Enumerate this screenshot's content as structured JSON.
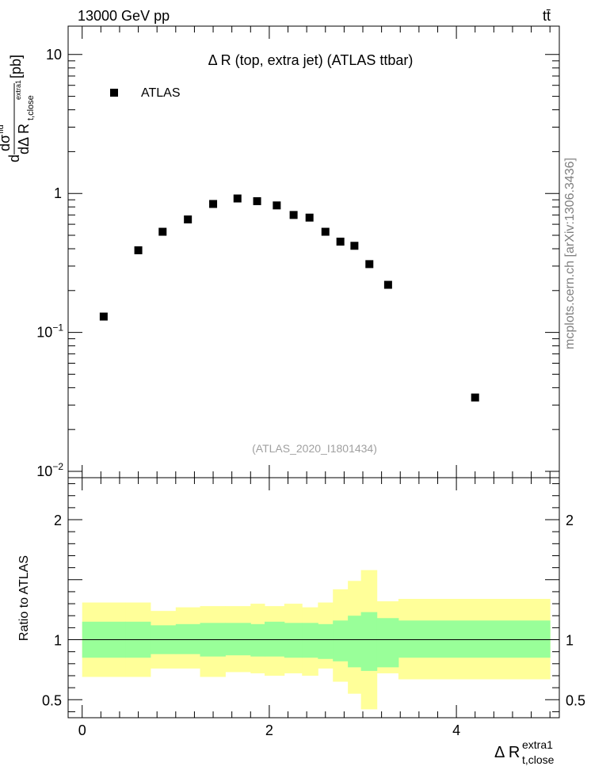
{
  "header": {
    "energy_label": "13000 GeV pp",
    "process_label": "tt̄",
    "watermark": "mcplots.cern.ch [arXiv:1306.3436]"
  },
  "chart_data": [
    {
      "type": "scatter",
      "panel": "main",
      "title": "Δ R (top, extra jet) (ATLAS ttbar)",
      "analysis_id": "(ATLAS_2020_I1801434)",
      "ylabel_parts": {
        "d": "d",
        "numer": "dσ",
        "numer_sup": "fid",
        "denom_prefix": "dΔ R",
        "denom_sub": "t,close",
        "denom_sup": "extra1",
        "unit": "[pb]"
      },
      "yscale": "log",
      "ylim": [
        0.009,
        16
      ],
      "yticks": [
        {
          "value": 0.01,
          "label_base": "10",
          "label_exp": "−2"
        },
        {
          "value": 0.1,
          "label_base": "10",
          "label_exp": "−1"
        },
        {
          "value": 1,
          "label": "1"
        },
        {
          "value": 10,
          "label": "10"
        }
      ],
      "xlim": [
        -0.15,
        5.1
      ],
      "legend": {
        "entries": [
          {
            "name": "ATLAS",
            "marker": "square"
          }
        ],
        "position": "top-left"
      },
      "series": [
        {
          "name": "ATLAS",
          "x": [
            0.23,
            0.6,
            0.86,
            1.13,
            1.4,
            1.66,
            1.87,
            2.08,
            2.26,
            2.43,
            2.6,
            2.76,
            2.91,
            3.07,
            3.27,
            4.2
          ],
          "y": [
            0.13,
            0.39,
            0.53,
            0.65,
            0.84,
            0.92,
            0.88,
            0.82,
            0.7,
            0.67,
            0.53,
            0.45,
            0.42,
            0.31,
            0.22,
            0.034
          ]
        }
      ]
    },
    {
      "type": "area",
      "panel": "ratio",
      "ylabel": "Ratio to ATLAS",
      "xlabel_parts": {
        "base": "Δ R",
        "sub": "t,close",
        "sup": "extra1"
      },
      "ylim": [
        0.35,
        2.35
      ],
      "xlim": [
        -0.15,
        5.1
      ],
      "xticks": [
        {
          "value": 0,
          "label": "0"
        },
        {
          "value": 2,
          "label": "2"
        },
        {
          "value": 4,
          "label": "4"
        }
      ],
      "yticks": [
        {
          "value": 0.5,
          "label": "0.5"
        },
        {
          "value": 1,
          "label": "1"
        },
        {
          "value": 2,
          "label": "2"
        }
      ],
      "reference_line": 1,
      "bands": {
        "edges": [
          0.0,
          0.46,
          0.73,
          1.0,
          1.26,
          1.53,
          1.8,
          1.95,
          2.16,
          2.35,
          2.52,
          2.68,
          2.84,
          2.98,
          3.15,
          3.38,
          5.0
        ],
        "inner_low": [
          0.85,
          0.85,
          0.88,
          0.88,
          0.86,
          0.87,
          0.86,
          0.86,
          0.85,
          0.85,
          0.84,
          0.82,
          0.77,
          0.74,
          0.77,
          0.85
        ],
        "inner_high": [
          1.15,
          1.15,
          1.12,
          1.13,
          1.14,
          1.14,
          1.13,
          1.15,
          1.14,
          1.14,
          1.13,
          1.16,
          1.2,
          1.23,
          1.18,
          1.16
        ],
        "outer_low": [
          0.69,
          0.69,
          0.76,
          0.76,
          0.69,
          0.73,
          0.72,
          0.7,
          0.72,
          0.7,
          0.76,
          0.65,
          0.55,
          0.42,
          0.72,
          0.67
        ],
        "outer_high": [
          1.31,
          1.31,
          1.24,
          1.27,
          1.28,
          1.28,
          1.3,
          1.28,
          1.3,
          1.27,
          1.31,
          1.42,
          1.49,
          1.58,
          1.32,
          1.34
        ],
        "inner_color": "#99ff99",
        "outer_color": "#ffff99"
      }
    }
  ]
}
